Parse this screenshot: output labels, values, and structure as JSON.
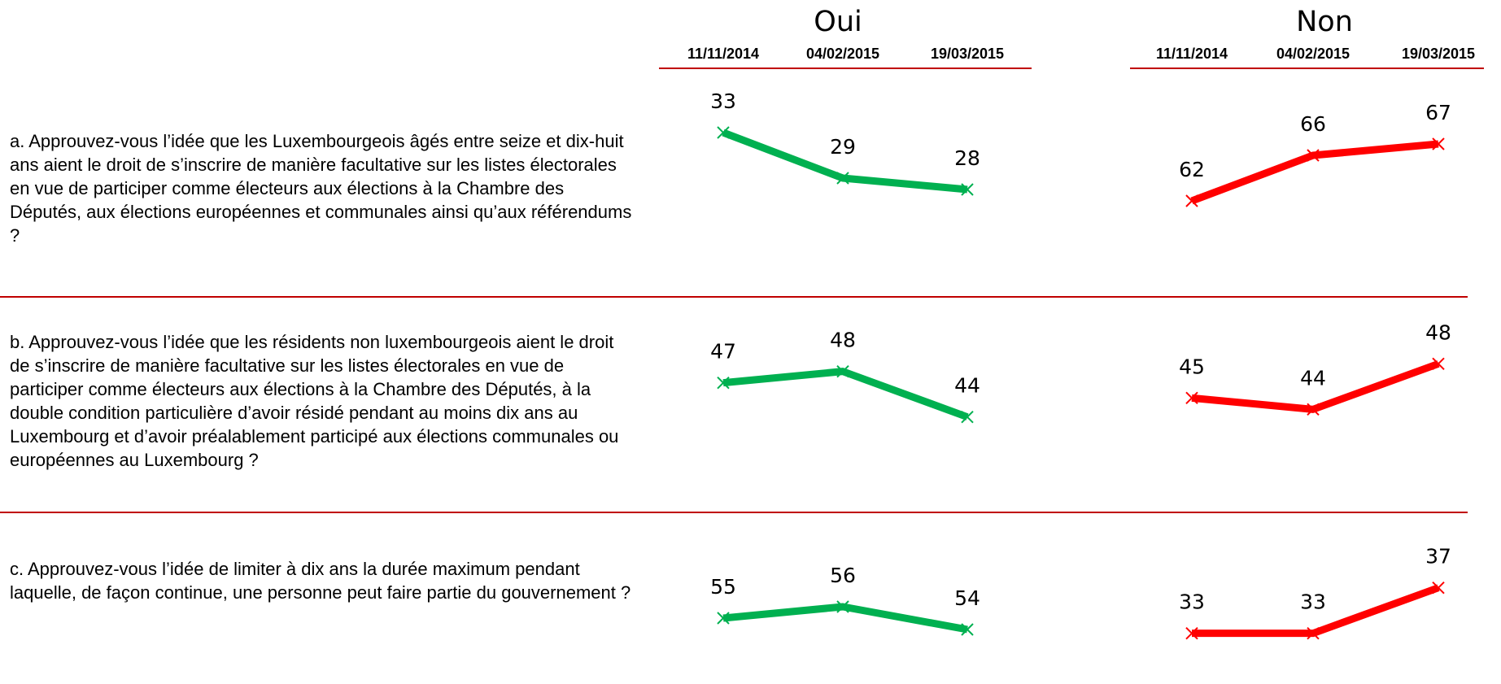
{
  "columns": [
    {
      "title": "Oui",
      "color": "#00b050",
      "dates": [
        "11/11/2014",
        "04/02/2015",
        "19/03/2015"
      ]
    },
    {
      "title": "Non",
      "color": "#ff0000",
      "dates": [
        "11/11/2014",
        "04/02/2015",
        "19/03/2015"
      ]
    }
  ],
  "rows": [
    {
      "question": "a. Approuvez-vous l’idée que les Luxembourgeois âgés entre seize et dix-huit ans aient le droit de s’inscrire de manière facultative sur les listes électorales en vue de participer comme électeurs aux élections à la Chambre des Députés, aux élections européennes et communales ainsi qu’aux référendums ?",
      "values": [
        [
          33,
          29,
          28
        ],
        [
          62,
          66,
          67
        ]
      ]
    },
    {
      "question": "b. Approuvez-vous l’idée que les résidents non luxembourgeois aient le droit de s’inscrire de manière facultative sur les listes électorales en vue de participer comme électeurs aux élections à la Chambre des Députés, à la double condition particulière d’avoir résidé pendant au moins dix ans au Luxembourg et d’avoir préalablement participé aux élections communales ou européennes au Luxembourg ?",
      "values": [
        [
          47,
          48,
          44
        ],
        [
          45,
          44,
          48
        ]
      ]
    },
    {
      "question": "c. Approuvez-vous l’idée de limiter à dix ans la durée maximum pendant laquelle, de façon continue, une personne peut faire partie du gouvernement ?",
      "values": [
        [
          55,
          56,
          54
        ],
        [
          33,
          33,
          37
        ]
      ]
    }
  ]
}
